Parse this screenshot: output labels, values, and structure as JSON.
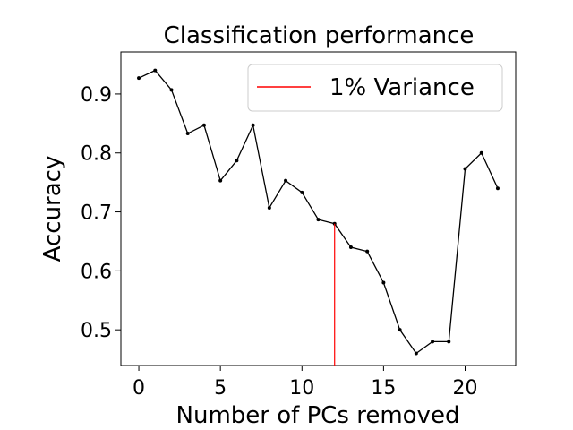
{
  "chart_data": {
    "type": "line",
    "title": "Classification performance",
    "xlabel": "Number of PCs removed",
    "ylabel": "Accuracy",
    "xlim": [
      -1.1,
      23.1
    ],
    "ylim": [
      0.4395,
      0.9713
    ],
    "xticks": [
      0,
      5,
      10,
      15,
      20
    ],
    "yticks": [
      0.5,
      0.6,
      0.7,
      0.8,
      0.9
    ],
    "grid": false,
    "legend_position": "top-right",
    "series": [
      {
        "color": "#000000",
        "marker": "dot",
        "x": [
          0,
          1,
          2,
          3,
          4,
          5,
          6,
          7,
          8,
          9,
          10,
          11,
          12,
          13,
          14,
          15,
          16,
          17,
          18,
          19,
          20,
          21,
          22
        ],
        "y": [
          0.927,
          0.94,
          0.907,
          0.833,
          0.847,
          0.753,
          0.787,
          0.847,
          0.707,
          0.753,
          0.733,
          0.687,
          0.68,
          0.64,
          0.633,
          0.58,
          0.5,
          0.46,
          0.48,
          0.48,
          0.773,
          0.8,
          0.74
        ]
      }
    ],
    "annotations": [
      {
        "type": "vline",
        "name": "1% Variance",
        "color": "#ff0000",
        "x": 12,
        "y_from": "axis-bottom",
        "y_to": 0.68
      }
    ]
  }
}
